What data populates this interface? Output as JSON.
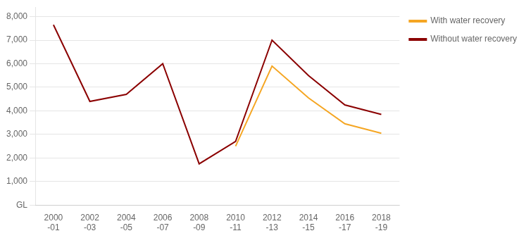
{
  "chart_data": {
    "type": "line",
    "categories": [
      "2000-01",
      "2002-03",
      "2004-05",
      "2006-07",
      "2008-09",
      "2010-11",
      "2012-13",
      "2014-15",
      "2016-17",
      "2018-19"
    ],
    "series": [
      {
        "name": "Without water recovery",
        "color": "#8B0000",
        "values": [
          7650,
          4400,
          4700,
          6000,
          1750,
          2700,
          7000,
          5500,
          4250,
          3850
        ]
      },
      {
        "name": "With water recovery",
        "color": "#F5A623",
        "values": [
          null,
          null,
          null,
          null,
          null,
          2500,
          5900,
          4550,
          3450,
          3050
        ]
      }
    ],
    "ylim": [
      0,
      8400
    ],
    "yticks": [
      {
        "value": 0,
        "label": "GL"
      },
      {
        "value": 1000,
        "label": "1,000"
      },
      {
        "value": 2000,
        "label": "2,000"
      },
      {
        "value": 3000,
        "label": "3,000"
      },
      {
        "value": 4000,
        "label": "4,000"
      },
      {
        "value": 5000,
        "label": "5,000"
      },
      {
        "value": 6000,
        "label": "6,000"
      },
      {
        "value": 7000,
        "label": "7,000"
      },
      {
        "value": 8000,
        "label": "8,000"
      }
    ],
    "grid": "y",
    "legend": "right"
  }
}
